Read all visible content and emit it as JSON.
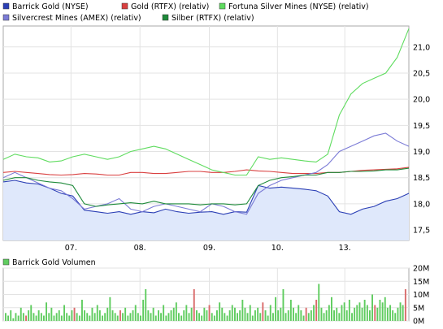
{
  "legend": [
    {
      "label": "Barrick Gold (NYSE)",
      "color": "#2b3fb5"
    },
    {
      "label": "Gold (RTFX) (relativ)",
      "color": "#d94040"
    },
    {
      "label": "Fortuna Silver Mines (NYSE) (relativ)",
      "color": "#5fdc5f"
    },
    {
      "label": "Silvercrest Mines (AMEX) (relativ)",
      "color": "#7b7bd6"
    },
    {
      "label": "Silber (RTFX) (relativ)",
      "color": "#1e8a3a"
    }
  ],
  "volume_label": "Barrick Gold Volumen",
  "volume_color": "#5fcc5f",
  "volume_alt_color": "#d96a6a",
  "chart_data": [
    {
      "type": "line",
      "x_ticks": [
        "07.",
        "08.",
        "09.",
        "10.",
        "13."
      ],
      "y_ticks": [
        "17,5",
        "18,0",
        "18,5",
        "19,0",
        "19,5",
        "20,0",
        "20,5",
        "21,0"
      ],
      "ylim": [
        17.3,
        21.4
      ],
      "grid": true,
      "legend_position": "top",
      "series": [
        {
          "name": "Barrick Gold (NYSE)",
          "color": "#2b3fb5",
          "area": true,
          "values": [
            18.42,
            18.45,
            18.4,
            18.38,
            18.3,
            18.2,
            18.15,
            17.88,
            17.85,
            17.82,
            17.85,
            17.8,
            17.85,
            17.83,
            17.9,
            17.85,
            17.82,
            17.84,
            17.85,
            17.8,
            17.85,
            17.84,
            18.35,
            18.3,
            18.32,
            18.3,
            18.28,
            18.25,
            18.15,
            17.85,
            17.8,
            17.9,
            17.95,
            18.05,
            18.1,
            18.2
          ]
        },
        {
          "name": "Gold (RTFX) (relativ)",
          "color": "#d94040",
          "values": [
            18.6,
            18.62,
            18.6,
            18.58,
            18.56,
            18.55,
            18.56,
            18.58,
            18.57,
            18.55,
            18.55,
            18.6,
            18.6,
            18.58,
            18.58,
            18.6,
            18.62,
            18.62,
            18.6,
            18.6,
            18.62,
            18.65,
            18.63,
            18.62,
            18.6,
            18.58,
            18.58,
            18.58,
            18.6,
            18.6,
            18.62,
            18.64,
            18.65,
            18.66,
            18.67,
            18.7
          ]
        },
        {
          "name": "Fortuna Silver Mines (NYSE) (relativ)",
          "color": "#5fdc5f",
          "values": [
            18.85,
            18.95,
            18.9,
            18.88,
            18.8,
            18.82,
            18.9,
            18.95,
            18.9,
            18.85,
            18.9,
            19.0,
            19.05,
            19.1,
            19.05,
            18.95,
            18.85,
            18.75,
            18.65,
            18.6,
            18.55,
            18.55,
            18.9,
            18.85,
            18.88,
            18.85,
            18.82,
            18.8,
            18.95,
            19.7,
            20.1,
            20.3,
            20.4,
            20.5,
            20.8,
            21.35
          ]
        },
        {
          "name": "Silvercrest Mines (AMEX) (relativ)",
          "color": "#7b7bd6",
          "values": [
            18.5,
            18.6,
            18.5,
            18.4,
            18.3,
            18.25,
            18.1,
            17.9,
            17.95,
            18.0,
            18.1,
            17.9,
            17.85,
            17.95,
            18.0,
            17.95,
            17.9,
            17.85,
            18.0,
            17.95,
            17.85,
            17.8,
            18.2,
            18.35,
            18.45,
            18.5,
            18.55,
            18.6,
            18.75,
            19.0,
            19.1,
            19.2,
            19.3,
            19.35,
            19.2,
            19.1
          ]
        },
        {
          "name": "Silber (RTFX) (relativ)",
          "color": "#1e8a3a",
          "values": [
            18.45,
            18.5,
            18.5,
            18.45,
            18.42,
            18.4,
            18.35,
            18.0,
            17.95,
            17.98,
            18.0,
            18.02,
            18.0,
            18.05,
            18.0,
            18.0,
            18.0,
            17.98,
            18.0,
            18.0,
            17.98,
            18.0,
            18.35,
            18.45,
            18.5,
            18.52,
            18.55,
            18.55,
            18.6,
            18.6,
            18.62,
            18.62,
            18.63,
            18.65,
            18.65,
            18.68
          ]
        }
      ]
    },
    {
      "type": "bar",
      "title": "Barrick Gold Volumen",
      "y_ticks": [
        "0M",
        "5M",
        "10M",
        "15M",
        "20M"
      ],
      "ylim": [
        0,
        20
      ],
      "values": [
        3,
        2,
        4,
        1,
        3,
        2,
        5,
        3,
        2,
        4,
        6,
        3,
        2,
        4,
        3,
        2,
        7,
        3,
        5,
        2,
        3,
        4,
        2,
        6,
        3,
        2,
        4,
        5,
        3,
        2,
        8,
        4,
        3,
        2,
        5,
        3,
        6,
        4,
        2,
        3,
        5,
        9,
        4,
        3,
        2,
        4,
        3,
        5,
        2,
        3,
        4,
        6,
        3,
        2,
        8,
        12,
        4,
        3,
        5,
        2,
        4,
        3,
        6,
        2,
        3,
        4,
        5,
        7,
        3,
        2,
        4,
        6,
        3,
        5,
        12,
        4,
        3,
        2,
        5,
        4,
        6,
        3,
        2,
        4,
        7,
        5,
        3,
        2,
        4,
        6,
        5,
        3,
        4,
        8,
        5,
        3,
        6,
        2,
        4,
        5,
        3,
        7,
        4,
        2,
        6,
        3,
        9,
        4,
        5,
        12,
        3,
        4,
        8,
        5,
        3,
        6,
        4,
        2,
        5,
        3,
        4,
        6,
        8,
        14,
        5,
        3,
        4,
        6,
        9,
        4,
        5,
        3,
        6,
        7,
        4,
        8,
        3,
        5,
        6,
        7,
        5,
        8,
        6,
        4,
        10,
        6,
        5,
        8,
        7,
        9,
        5,
        6,
        4,
        3,
        5,
        7,
        6,
        12
      ],
      "red_indices": [
        8,
        27,
        45,
        74,
        80,
        101,
        118,
        122,
        145,
        157
      ]
    }
  ]
}
